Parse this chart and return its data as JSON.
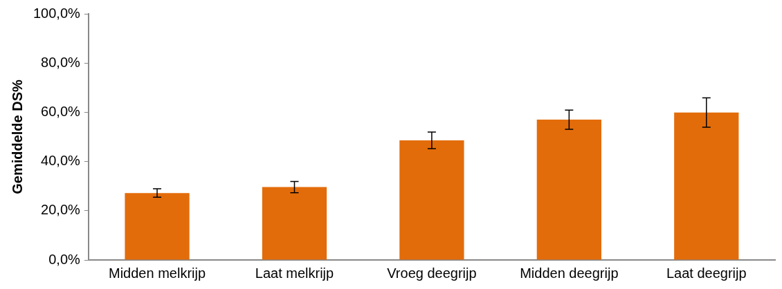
{
  "chart_data": {
    "type": "bar",
    "ylabel": "Gemiddelde DS%",
    "categories": [
      "Midden melkrijp",
      "Laat melkrijp",
      "Vroeg deegrijp",
      "Midden deegrijp",
      "Laat deegrijp"
    ],
    "values": [
      27.2,
      29.6,
      48.6,
      57.0,
      59.9
    ],
    "errors": [
      1.7,
      2.3,
      3.4,
      3.9,
      6.0
    ],
    "color": "#e36c0a",
    "ylim": [
      0,
      100
    ],
    "yticks": [
      {
        "value": 0,
        "label": "0,0%"
      },
      {
        "value": 20,
        "label": "20,0%"
      },
      {
        "value": 40,
        "label": "40,0%"
      },
      {
        "value": 60,
        "label": "60,0%"
      },
      {
        "value": 80,
        "label": "80,0%"
      },
      {
        "value": 100,
        "label": "100,0%"
      }
    ],
    "grid": false,
    "legend": false
  }
}
